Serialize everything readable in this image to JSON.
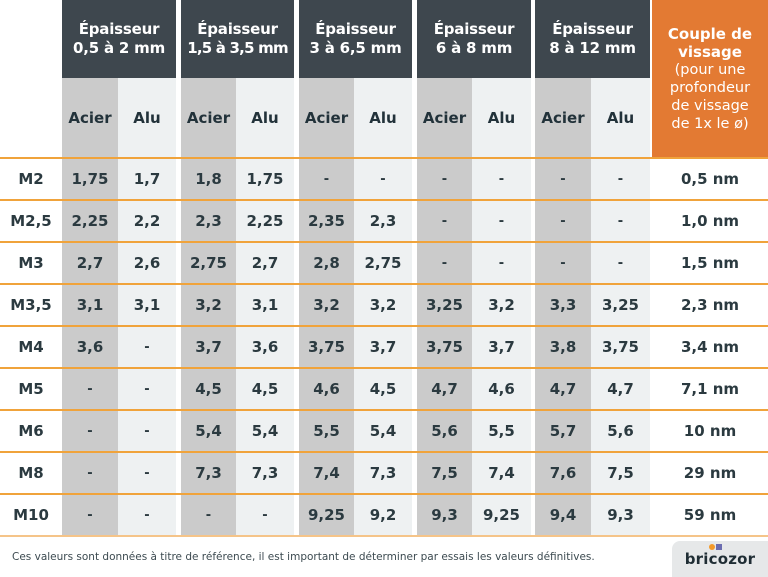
{
  "groups": [
    {
      "title": "Épaisseur",
      "range": "0,5 à 2 mm"
    },
    {
      "title": "Épaisseur",
      "range": "1,5 à 3,5 mm"
    },
    {
      "title": "Épaisseur",
      "range": "3 à 6,5 mm"
    },
    {
      "title": "Épaisseur",
      "range": "6 à 8 mm"
    },
    {
      "title": "Épaisseur",
      "range": "8 à 12 mm"
    }
  ],
  "subheaders": {
    "acier": "Acier",
    "alu": "Alu"
  },
  "torque_header": {
    "title_line1": "Couple de",
    "title_line2": "vissage",
    "sub_line1": "(pour une",
    "sub_line2": "profondeur",
    "sub_line3": "de vissage",
    "sub_line4": "de 1x le ø)"
  },
  "rows": [
    {
      "label": "M2",
      "values": [
        "1,75",
        "1,7",
        "1,8",
        "1,75",
        "-",
        "-",
        "-",
        "-",
        "-",
        "-"
      ],
      "torque": "0,5 nm"
    },
    {
      "label": "M2,5",
      "values": [
        "2,25",
        "2,2",
        "2,3",
        "2,25",
        "2,35",
        "2,3",
        "-",
        "-",
        "-",
        "-"
      ],
      "torque": "1,0 nm"
    },
    {
      "label": "M3",
      "values": [
        "2,7",
        "2,6",
        "2,75",
        "2,7",
        "2,8",
        "2,75",
        "-",
        "-",
        "-",
        "-"
      ],
      "torque": "1,5 nm"
    },
    {
      "label": "M3,5",
      "values": [
        "3,1",
        "3,1",
        "3,2",
        "3,1",
        "3,2",
        "3,2",
        "3,25",
        "3,2",
        "3,3",
        "3,25"
      ],
      "torque": "2,3 nm"
    },
    {
      "label": "M4",
      "values": [
        "3,6",
        "-",
        "3,7",
        "3,6",
        "3,75",
        "3,7",
        "3,75",
        "3,7",
        "3,8",
        "3,75"
      ],
      "torque": "3,4 nm"
    },
    {
      "label": "M5",
      "values": [
        "-",
        "-",
        "4,5",
        "4,5",
        "4,6",
        "4,5",
        "4,7",
        "4,6",
        "4,7",
        "4,7"
      ],
      "torque": "7,1 nm"
    },
    {
      "label": "M6",
      "values": [
        "-",
        "-",
        "5,4",
        "5,4",
        "5,5",
        "5,4",
        "5,6",
        "5,5",
        "5,7",
        "5,6"
      ],
      "torque": "10 nm"
    },
    {
      "label": "M8",
      "values": [
        "-",
        "-",
        "7,3",
        "7,3",
        "7,4",
        "7,3",
        "7,5",
        "7,4",
        "7,6",
        "7,5"
      ],
      "torque": "29 nm"
    },
    {
      "label": "M10",
      "values": [
        "-",
        "-",
        "-",
        "-",
        "9,25",
        "9,2",
        "9,3",
        "9,25",
        "9,4",
        "9,3"
      ],
      "torque": "59 nm"
    }
  ],
  "footer": {
    "note": "Ces valeurs sont données à titre de référence, il est important de déterminer par essais les valeurs définitives.",
    "logo": "bricozor"
  },
  "colors": {
    "header_dark": "#3e474e",
    "torque_orange": "#e37a33",
    "row_line": "#f0a33b",
    "acier_bg": "#cbcbcb",
    "alu_bg": "#eef1f2",
    "text": "#2b3a40"
  }
}
